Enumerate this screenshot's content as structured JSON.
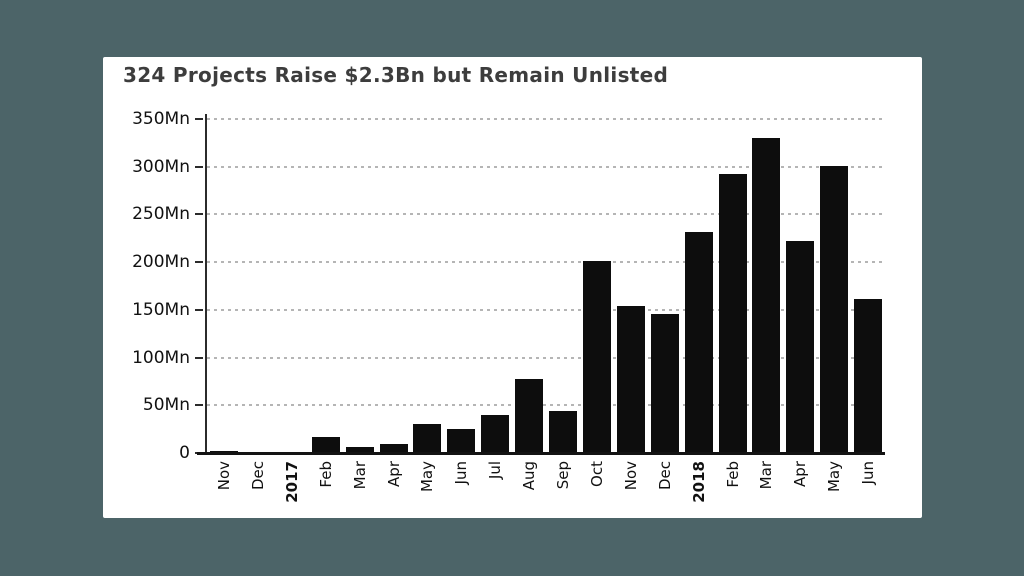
{
  "page": {
    "background_color": "#4c6468",
    "card_background": "#ffffff"
  },
  "chart_data": {
    "type": "bar",
    "title": "324 Projects Raise $2.3Bn but Remain Unlisted",
    "unit": "Mn",
    "categories": [
      "Nov",
      "Dec",
      "2017",
      "Feb",
      "Mar",
      "Apr",
      "May",
      "Jun",
      "Jul",
      "Aug",
      "Sep",
      "Oct",
      "Nov",
      "Dec",
      "2018",
      "Feb",
      "Mar",
      "Apr",
      "May",
      "Jun"
    ],
    "emphasized_categories": [
      "2017",
      "2018"
    ],
    "values": [
      2,
      1,
      0,
      17,
      6,
      9,
      30,
      25,
      40,
      78,
      44,
      201,
      154,
      146,
      232,
      292,
      330,
      222,
      301,
      161
    ],
    "ylim": [
      0,
      350
    ],
    "ytick_step": 50,
    "ytick_labels": [
      "350Mn",
      "300Mn",
      "250Mn",
      "200Mn",
      "150Mn",
      "100Mn",
      "50Mn",
      "0"
    ],
    "xlabel": "",
    "ylabel": "",
    "grid": "horizontal-dashed",
    "legend": "none",
    "bar_color": "#0d0d0d"
  }
}
